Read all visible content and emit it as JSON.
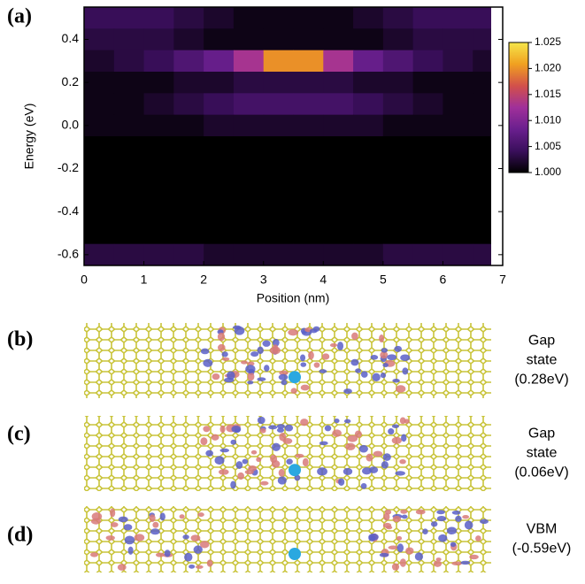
{
  "chart_data": {
    "type": "heatmap",
    "panel_label": "(a)",
    "xlabel": "Position (nm)",
    "ylabel": "Energy (eV)",
    "xlim": [
      0,
      7
    ],
    "ylim": [
      -0.65,
      0.55
    ],
    "xticks": [
      0,
      1,
      2,
      3,
      4,
      5,
      6,
      7
    ],
    "yticks": [
      0.4,
      0.2,
      {
        "value": 0,
        "label": "0.0"
      },
      -0.2,
      -0.4,
      -0.6
    ],
    "x_edges": [
      0,
      0.5,
      1,
      1.5,
      2,
      2.5,
      3,
      3.5,
      4,
      4.5,
      5,
      5.5,
      6,
      6.5,
      6.8
    ],
    "y_edges": [
      0.55,
      0.45,
      0.35,
      0.25,
      0.15,
      0.05,
      -0.05,
      -0.15,
      -0.25,
      -0.35,
      -0.45,
      -0.55,
      -0.65
    ],
    "z": [
      [
        1.004,
        1.004,
        1.004,
        1.003,
        1.002,
        1.001,
        1.001,
        1.001,
        1.001,
        1.002,
        1.003,
        1.004,
        1.004,
        1.004
      ],
      [
        1.003,
        1.003,
        1.003,
        1.002,
        1.001,
        1.001,
        1.001,
        1.001,
        1.001,
        1.001,
        1.002,
        1.003,
        1.003,
        1.003
      ],
      [
        1.002,
        1.003,
        1.004,
        1.006,
        1.008,
        1.013,
        1.02,
        1.02,
        1.013,
        1.008,
        1.006,
        1.004,
        1.003,
        1.002
      ],
      [
        1.001,
        1.001,
        1.001,
        1.002,
        1.002,
        1.003,
        1.003,
        1.003,
        1.003,
        1.002,
        1.002,
        1.001,
        1.001,
        1.001
      ],
      [
        1.001,
        1.001,
        1.002,
        1.003,
        1.004,
        1.005,
        1.005,
        1.005,
        1.005,
        1.004,
        1.003,
        1.002,
        1.001,
        1.001
      ],
      [
        1.001,
        1.001,
        1.001,
        1.001,
        1.002,
        1.002,
        1.002,
        1.002,
        1.002,
        1.002,
        1.001,
        1.001,
        1.001,
        1.001
      ],
      [
        1,
        1,
        1,
        1,
        1,
        1,
        1,
        1,
        1,
        1,
        1,
        1,
        1,
        1
      ],
      [
        1,
        1,
        1,
        1,
        1,
        1,
        1,
        1,
        1,
        1,
        1,
        1,
        1,
        1
      ],
      [
        1,
        1,
        1,
        1,
        1,
        1,
        1,
        1,
        1,
        1,
        1,
        1,
        1,
        1
      ],
      [
        1,
        1,
        1,
        1,
        1,
        1,
        1,
        1,
        1,
        1,
        1,
        1,
        1,
        1
      ],
      [
        1,
        1,
        1,
        1,
        1,
        1,
        1,
        1,
        1,
        1,
        1,
        1,
        1,
        1
      ],
      [
        1.003,
        1.003,
        1.003,
        1.003,
        1.002,
        1.002,
        1.002,
        1.002,
        1.002,
        1.002,
        1.003,
        1.003,
        1.003,
        1.003
      ]
    ],
    "zlim": [
      1,
      1.025
    ],
    "zticks": [
      {
        "value": 1,
        "label": "1.000"
      },
      {
        "value": 1.005,
        "label": "1.005"
      },
      {
        "value": 1.01,
        "label": "1.010"
      },
      {
        "value": 1.015,
        "label": "1.015"
      },
      {
        "value": 1.02,
        "label": "1.020"
      },
      {
        "value": 1.025,
        "label": "1.025"
      }
    ],
    "colormap": [
      "#000000",
      "#3a0f5c",
      "#6a1f8e",
      "#a0309a",
      "#d2504a",
      "#f0a020",
      "#f5e64a"
    ]
  },
  "panels": [
    {
      "label": "(b)",
      "caption": [
        "Gap",
        "state",
        "(0.28eV)"
      ]
    },
    {
      "label": "(c)",
      "caption": [
        "Gap",
        "state",
        "(0.06eV)"
      ]
    },
    {
      "label": "(d)",
      "caption": [
        "VBM",
        "(-0.59eV)"
      ]
    }
  ]
}
